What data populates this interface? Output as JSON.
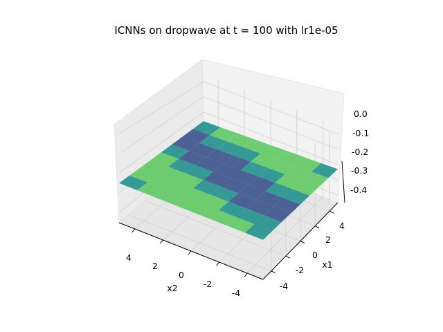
{
  "chart_data": {
    "type": "surface3d",
    "title": "ICNNs on dropwave at t = 100 with lr1e-05",
    "xlabel": "x1",
    "ylabel": "x2",
    "zlabel": "",
    "x_ticks": [
      "-4",
      "-2",
      "0",
      "2",
      "4"
    ],
    "y_ticks": [
      "-4",
      "-2",
      "0",
      "2",
      "4"
    ],
    "z_ticks": [
      "0.0",
      "-0.1",
      "-0.2",
      "-0.3",
      "-0.4"
    ],
    "xlim": [
      -5.12,
      5.12
    ],
    "ylim": [
      -5.12,
      5.12
    ],
    "zlim": [
      -0.45,
      0.05
    ],
    "colormap": "viridis",
    "grid": true,
    "surface": {
      "description_values": "nearly flat plane near z = -0.25",
      "corners": [
        {
          "x": -5.12,
          "y": 5.12,
          "z": -0.25
        },
        {
          "x": 5.12,
          "y": 5.12,
          "z": -0.26
        },
        {
          "x": 5.12,
          "y": -5.12,
          "z": -0.23
        },
        {
          "x": -5.12,
          "y": -5.12,
          "z": -0.25
        }
      ]
    }
  }
}
